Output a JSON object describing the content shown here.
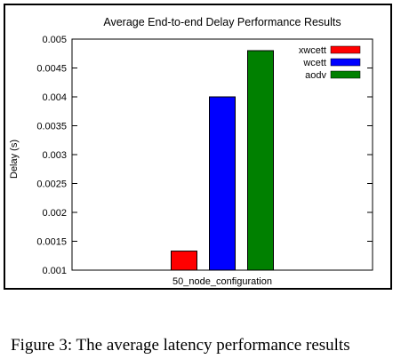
{
  "chart_data": {
    "type": "bar",
    "title": "Average End-to-end Delay Performance Results",
    "xlabel": "",
    "ylabel": "Delay (s)",
    "categories": [
      "50_node_configuration"
    ],
    "ylim": [
      0.001,
      0.005
    ],
    "yticks": [
      "0.001",
      "0.0015",
      "0.002",
      "0.0025",
      "0.003",
      "0.0035",
      "0.004",
      "0.0045",
      "0.005"
    ],
    "legend_position": "top-right",
    "grid": false,
    "series": [
      {
        "name": "xwcett",
        "values": [
          0.00133
        ],
        "color": "#ff0000"
      },
      {
        "name": "wcett",
        "values": [
          0.004
        ],
        "color": "#0000ff"
      },
      {
        "name": "aodv",
        "values": [
          0.0048
        ],
        "color": "#008000"
      }
    ]
  },
  "caption": "Figure 3: The average latency performance results"
}
